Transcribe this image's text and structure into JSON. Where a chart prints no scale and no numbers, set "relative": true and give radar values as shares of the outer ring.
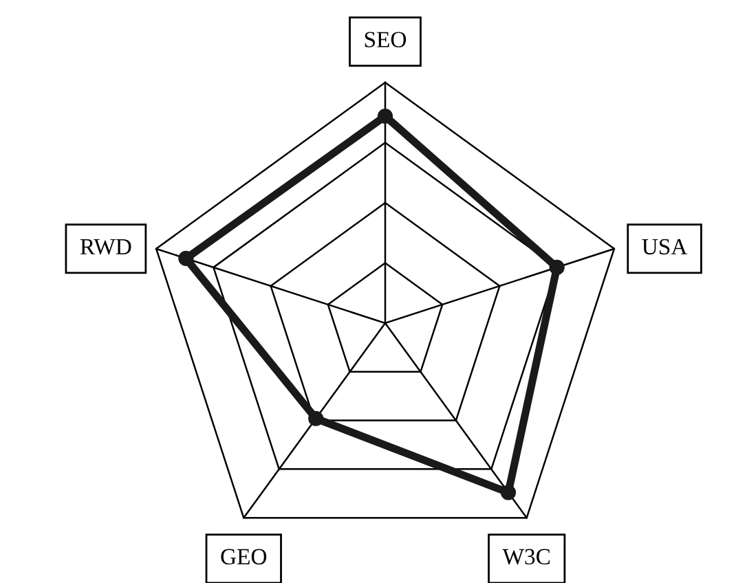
{
  "chart_data": {
    "type": "radar",
    "relative": true,
    "categories": [
      "SEO",
      "USA",
      "W3C",
      "GEO",
      "RWD"
    ],
    "series": [
      {
        "color": "#1a1a1a",
        "values": [
          0.86,
          0.75,
          0.87,
          0.49,
          0.87
        ]
      }
    ],
    "marker": "circle",
    "line_style": "solid",
    "grid": true,
    "legend": false
  }
}
